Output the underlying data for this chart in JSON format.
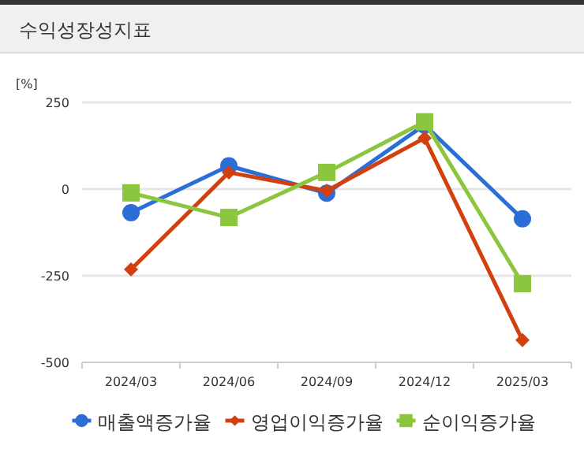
{
  "chart_data": {
    "type": "line",
    "title": "수익성장성지표",
    "ylabel": "[%]",
    "categories": [
      "2024/03",
      "2024/06",
      "2024/09",
      "2024/12",
      "2025/03"
    ],
    "series": [
      {
        "name": "매출액증가율",
        "color": "#2b6fd6",
        "marker": "circle",
        "values": [
          -68,
          67,
          -12,
          185,
          -86
        ]
      },
      {
        "name": "영업이익증가율",
        "color": "#d2400f",
        "marker": "diamond",
        "values": [
          -232,
          48,
          -5,
          147,
          -436
        ]
      },
      {
        "name": "순이익증가율",
        "color": "#8cc63f",
        "marker": "square",
        "values": [
          -11,
          -82,
          48,
          194,
          -273
        ]
      }
    ],
    "ylim": [
      -500,
      250
    ],
    "yticks": [
      -500,
      -250,
      0,
      250
    ],
    "grid": "y",
    "legend": "bottom",
    "line_style": "solid"
  }
}
